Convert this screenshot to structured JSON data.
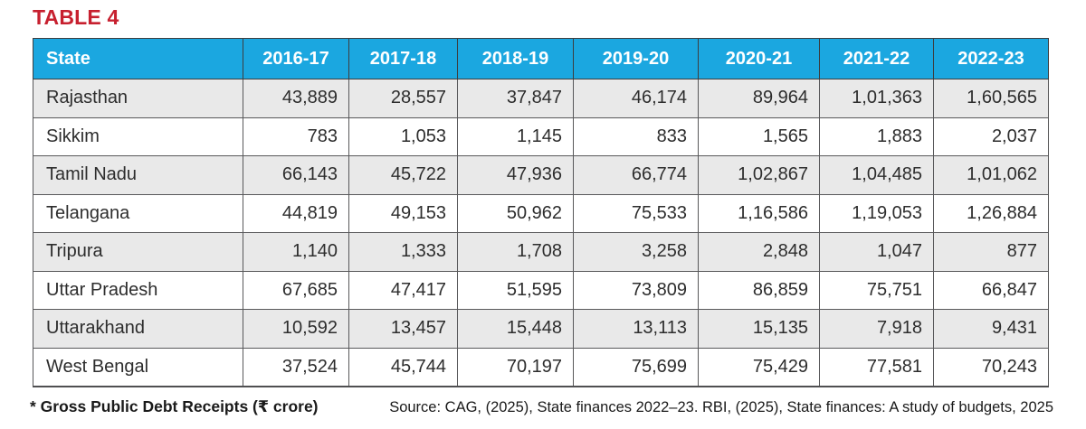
{
  "title": "TABLE 4",
  "table": {
    "columns": [
      "State",
      "2016-17",
      "2017-18",
      "2018-19",
      "2019-20",
      "2020-21",
      "2021-22",
      "2022-23"
    ],
    "rows": [
      {
        "state": "Rajasthan",
        "values": [
          "43,889",
          "28,557",
          "37,847",
          "46,174",
          "89,964",
          "1,01,363",
          "1,60,565"
        ]
      },
      {
        "state": "Sikkim",
        "values": [
          "783",
          "1,053",
          "1,145",
          "833",
          "1,565",
          "1,883",
          "2,037"
        ]
      },
      {
        "state": "Tamil Nadu",
        "values": [
          "66,143",
          "45,722",
          "47,936",
          "66,774",
          "1,02,867",
          "1,04,485",
          "1,01,062"
        ]
      },
      {
        "state": "Telangana",
        "values": [
          "44,819",
          "49,153",
          "50,962",
          "75,533",
          "1,16,586",
          "1,19,053",
          "1,26,884"
        ]
      },
      {
        "state": "Tripura",
        "values": [
          "1,140",
          "1,333",
          "1,708",
          "3,258",
          "2,848",
          "1,047",
          "877"
        ]
      },
      {
        "state": "Uttar Pradesh",
        "values": [
          "67,685",
          "47,417",
          "51,595",
          "73,809",
          "86,859",
          "75,751",
          "66,847"
        ]
      },
      {
        "state": "Uttarakhand",
        "values": [
          "10,592",
          "13,457",
          "15,448",
          "13,113",
          "15,135",
          "7,918",
          "9,431"
        ]
      },
      {
        "state": "West Bengal",
        "values": [
          "37,524",
          "45,744",
          "70,197",
          "75,699",
          "75,429",
          "77,581",
          "70,243"
        ]
      }
    ]
  },
  "footer": {
    "note": "* Gross Public Debt Receipts (₹ crore)",
    "source": "Source: CAG, (2025), State finances 2022–23. RBI, (2025), State finances: A study of budgets, 2025"
  },
  "colors": {
    "header_bg": "#1ba7e0",
    "header_text": "#ffffff",
    "title_red": "#c7202f",
    "row_alt_bg": "#e9e9e9",
    "border": "#58585a"
  },
  "chart_data": {
    "type": "table",
    "title": "TABLE 4",
    "subtitle": "Gross Public Debt Receipts",
    "unit": "₹ crore",
    "columns": [
      "State",
      "2016-17",
      "2017-18",
      "2018-19",
      "2019-20",
      "2020-21",
      "2021-22",
      "2022-23"
    ],
    "rows": [
      {
        "state": "Rajasthan",
        "values": [
          43889,
          28557,
          37847,
          46174,
          89964,
          101363,
          160565
        ]
      },
      {
        "state": "Sikkim",
        "values": [
          783,
          1053,
          1145,
          833,
          1565,
          1883,
          2037
        ]
      },
      {
        "state": "Tamil Nadu",
        "values": [
          66143,
          45722,
          47936,
          66774,
          102867,
          104485,
          101062
        ]
      },
      {
        "state": "Telangana",
        "values": [
          44819,
          49153,
          50962,
          75533,
          116586,
          119053,
          126884
        ]
      },
      {
        "state": "Tripura",
        "values": [
          1140,
          1333,
          1708,
          3258,
          2848,
          1047,
          877
        ]
      },
      {
        "state": "Uttar Pradesh",
        "values": [
          67685,
          47417,
          51595,
          73809,
          86859,
          75751,
          66847
        ]
      },
      {
        "state": "Uttarakhand",
        "values": [
          10592,
          13457,
          15448,
          13113,
          15135,
          7918,
          9431
        ]
      },
      {
        "state": "West Bengal",
        "values": [
          37524,
          45744,
          70197,
          75699,
          75429,
          77581,
          70243
        ]
      }
    ],
    "source": "Source: CAG, (2025), State finances 2022–23. RBI, (2025), State finances: A study of budgets, 2025"
  }
}
